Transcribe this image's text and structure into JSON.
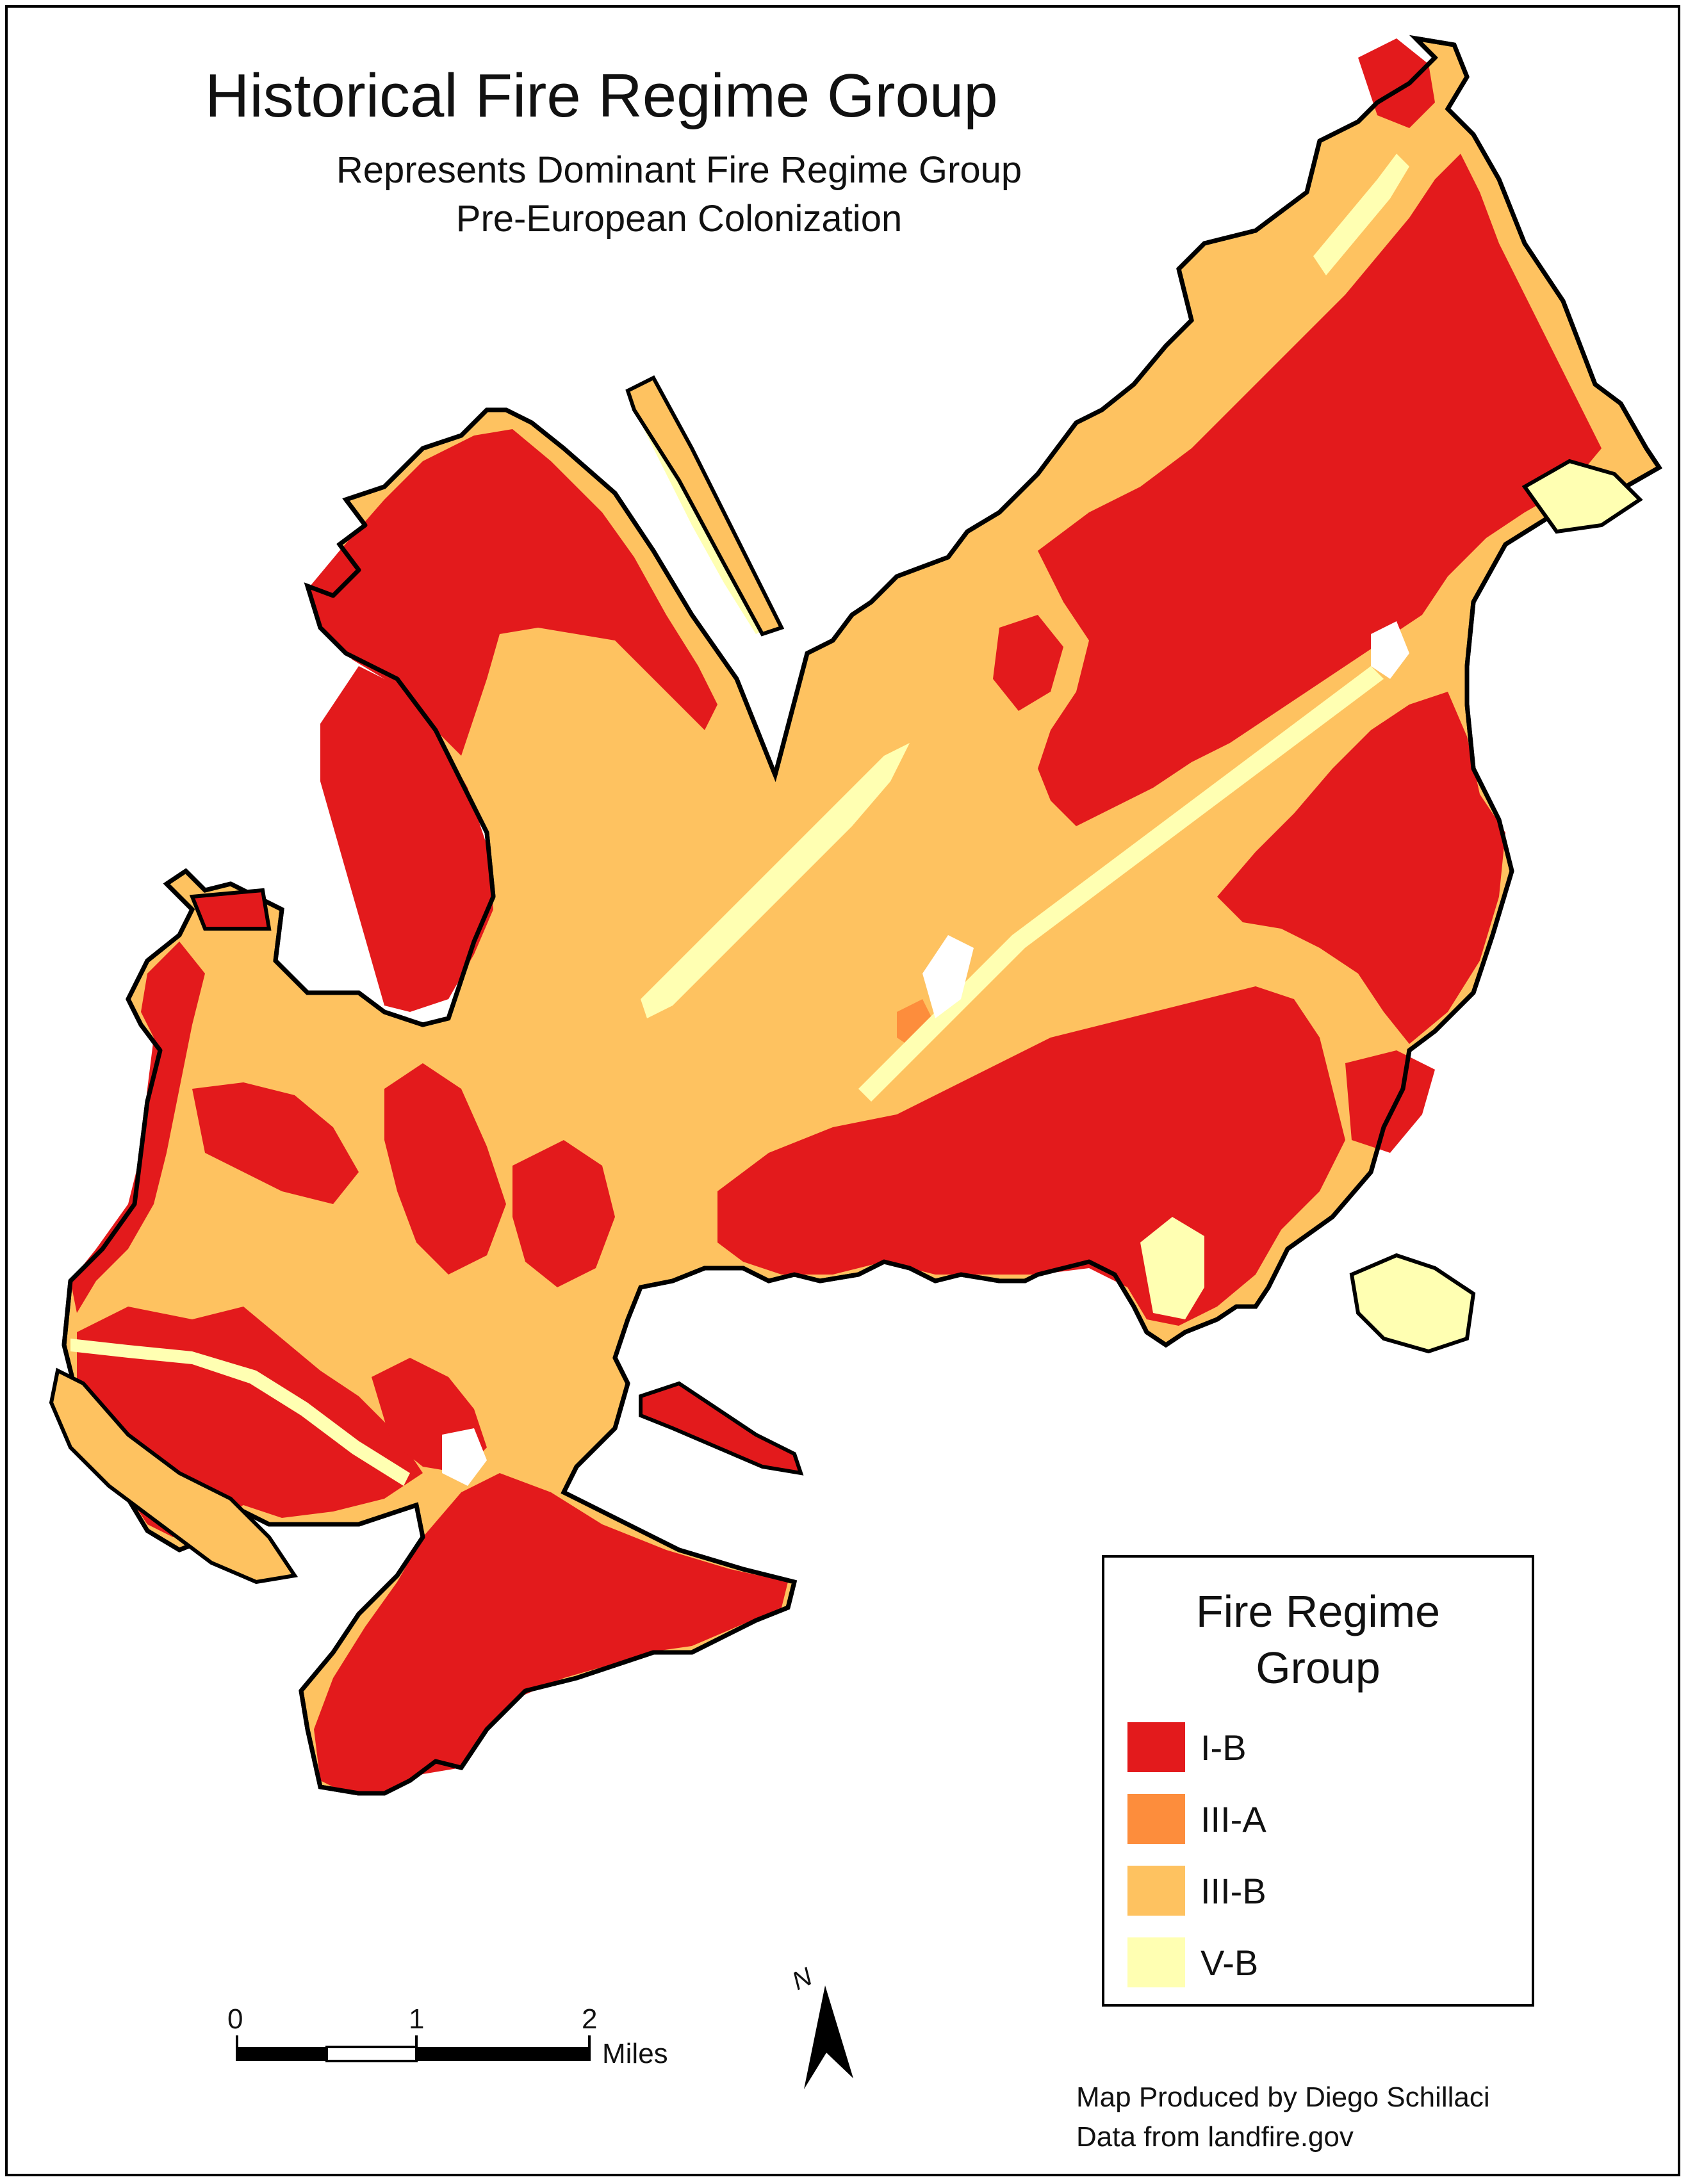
{
  "title": "Historical Fire Regime Group",
  "subtitle_line1": "Represents Dominant Fire Regime Group",
  "subtitle_line2": "Pre-European Colonization",
  "legend": {
    "title_line1": "Fire Regime",
    "title_line2": "Group",
    "items": [
      {
        "label": "I-B",
        "color": "#e31a1c"
      },
      {
        "label": "III-A",
        "color": "#fd8d3c"
      },
      {
        "label": "III-B",
        "color": "#fec260"
      },
      {
        "label": "V-B",
        "color": "#ffffb2"
      }
    ]
  },
  "scale_bar": {
    "ticks": [
      "0",
      "1",
      "2"
    ],
    "unit": "Miles"
  },
  "north_arrow": {
    "label": "N"
  },
  "credits": {
    "line1": "Map Produced by Diego Schillaci",
    "line2": "Data from landfire.gov"
  },
  "colors": {
    "boundary": "#000000",
    "background": "#ffffff"
  }
}
